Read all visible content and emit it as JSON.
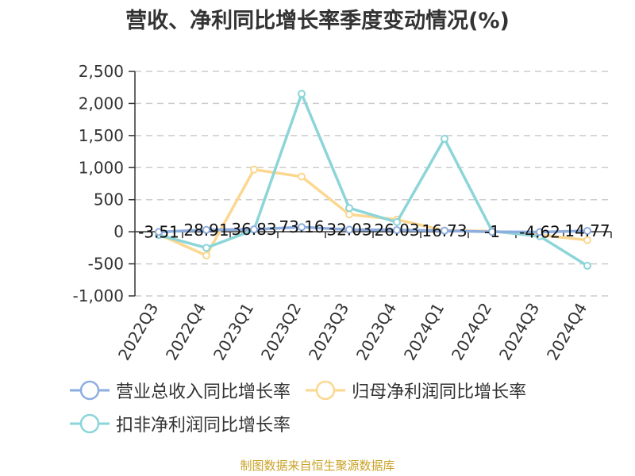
{
  "title": "营收、净利同比增长率季度变动情况(%)",
  "source_text": "制图数据来自恒生聚源数据库",
  "colors": {
    "revenue": "#8eaee0",
    "net_profit": "#fcd78f",
    "deducted_net_profit": "#8cd5d8",
    "axis": "#333333",
    "grid": "#cccccc",
    "source": "#c9a227"
  },
  "chart_data": {
    "type": "line",
    "title": "营收、净利同比增长率季度变动情况(%)",
    "categories": [
      "2022Q3",
      "2022Q4",
      "2023Q1",
      "2023Q2",
      "2023Q3",
      "2023Q4",
      "2024Q1",
      "2024Q2",
      "2024Q3",
      "2024Q4"
    ],
    "ylim": [
      -1000,
      2500
    ],
    "yticks": [
      2500,
      2000,
      1500,
      1000,
      500,
      0,
      -500,
      -1000
    ],
    "ytick_labels": [
      "2,500",
      "2,000",
      "1,500",
      "1,000",
      "500",
      "0",
      "-500",
      "-1,000"
    ],
    "grid": true,
    "legend_position": "bottom",
    "series": [
      {
        "name": "营业总收入同比增长率",
        "values": [
          -3.51,
          28.91,
          36.83,
          73.16,
          32.03,
          26.03,
          16.73,
          -1,
          -4.62,
          14.77
        ],
        "labels": [
          "-3.51",
          "28.91",
          "36.83",
          "73.16",
          "32.03",
          "26.03",
          "16.73",
          "-1",
          "-4.62",
          "14.77"
        ]
      },
      {
        "name": "归母净利润同比增长率",
        "values": [
          -40,
          -370,
          970,
          860,
          270,
          190,
          20,
          10,
          -50,
          -130
        ]
      },
      {
        "name": "扣非净利润同比增长率",
        "values": [
          -50,
          -250,
          30,
          2150,
          370,
          150,
          1450,
          10,
          -70,
          -530
        ]
      }
    ]
  }
}
